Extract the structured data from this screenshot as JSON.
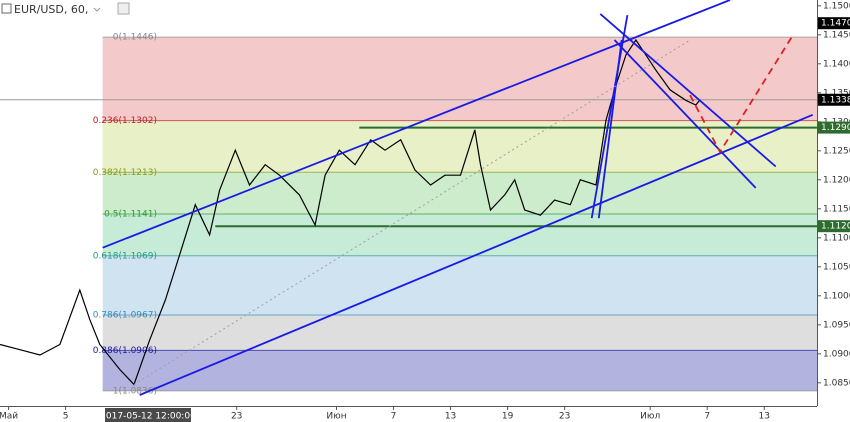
{
  "chart_data": {
    "type": "line",
    "title": "EUR/USD, 60,",
    "color": "#000000",
    "x": [
      -0.6,
      0.8,
      2.2,
      3.6,
      5.0,
      5.7,
      6.4,
      7.8,
      8.8,
      9.9,
      11.0,
      12.0,
      13.1,
      14.1,
      14.8,
      15.9,
      16.9,
      18.0,
      19.0,
      20.4,
      21.5,
      22.2,
      23.2,
      24.3,
      25.4,
      26.4,
      27.5,
      28.5,
      29.6,
      30.6,
      31.7,
      32.7,
      33.1,
      33.8,
      34.8,
      35.5,
      36.2,
      37.3,
      38.3,
      39.4,
      40.1,
      41.2,
      41.9,
      42.6,
      43.3,
      44.0,
      44.7,
      45.4,
      46.4,
      47.5,
      48.2,
      48.5
    ],
    "values": [
      1.0916,
      1.0907,
      1.0898,
      1.0916,
      1.101,
      1.0959,
      1.0916,
      1.0873,
      1.0847,
      1.0924,
      1.0993,
      1.1071,
      1.1157,
      1.1105,
      1.1182,
      1.1251,
      1.1191,
      1.1226,
      1.1208,
      1.1174,
      1.1122,
      1.1208,
      1.1251,
      1.1226,
      1.1269,
      1.1251,
      1.1269,
      1.1217,
      1.1191,
      1.1208,
      1.1208,
      1.1286,
      1.1226,
      1.1148,
      1.1174,
      1.12,
      1.1148,
      1.1139,
      1.1165,
      1.1157,
      1.12,
      1.1191,
      1.1303,
      1.1363,
      1.1415,
      1.1441,
      1.1415,
      1.1389,
      1.1355,
      1.1337,
      1.1329,
      1.1338
    ],
    "xlim": [
      -0.6,
      56.7
    ],
    "ylim": [
      1.081,
      1.151
    ],
    "xticks": [
      {
        "value": 0,
        "label": "Май"
      },
      {
        "value": 4,
        "label": "5"
      },
      {
        "value": 16,
        "label": "23"
      },
      {
        "value": 23,
        "label": "Июн"
      },
      {
        "value": 27,
        "label": "7"
      },
      {
        "value": 31,
        "label": "13"
      },
      {
        "value": 35,
        "label": "19"
      },
      {
        "value": 39,
        "label": "23"
      },
      {
        "value": 45,
        "label": "Июл"
      },
      {
        "value": 49,
        "label": "7"
      },
      {
        "value": 53,
        "label": "13"
      }
    ],
    "yticks": [
      {
        "value": 1.085,
        "label": "1.0850"
      },
      {
        "value": 1.09,
        "label": "1.0900"
      },
      {
        "value": 1.095,
        "label": "1.0950"
      },
      {
        "value": 1.1,
        "label": "1.1000"
      },
      {
        "value": 1.105,
        "label": "1.1050"
      },
      {
        "value": 1.11,
        "label": "1.1100"
      },
      {
        "value": 1.115,
        "label": "1.1150"
      },
      {
        "value": 1.12,
        "label": "1.1200"
      },
      {
        "value": 1.125,
        "label": "1.1250"
      },
      {
        "value": 1.13,
        "label": "1.1300"
      },
      {
        "value": 1.135,
        "label": "1.1350"
      },
      {
        "value": 1.14,
        "label": "1.1400"
      },
      {
        "value": 1.145,
        "label": "1.1450"
      },
      {
        "value": 1.15,
        "label": "1.1500"
      }
    ],
    "crosshair_label": "2017-05-12 12:00:00",
    "fib": {
      "start": 6.6,
      "levels": [
        {
          "value": 1.1446,
          "label": "0(1.1446)",
          "text_color": "#888888",
          "fill": "#f3c9c9"
        },
        {
          "value": 1.1302,
          "label": "0.236(1.1302)",
          "text_color": "#c0202a",
          "fill": "#e7f0c6"
        },
        {
          "value": 1.1213,
          "label": "0.382(1.1213)",
          "text_color": "#8a9a1a",
          "fill": "#cdeccc"
        },
        {
          "value": 1.1141,
          "label": "0.5(1.1141)",
          "text_color": "#2e9a3a",
          "fill": "#c6ecd7"
        },
        {
          "value": 1.1069,
          "label": "0.618(1.1069)",
          "text_color": "#2a9a8a",
          "fill": "#cfe3f1"
        },
        {
          "value": 1.0967,
          "label": "0.786(1.0967)",
          "text_color": "#3a8ab8",
          "fill": "#dedede"
        },
        {
          "value": 1.0906,
          "label": "0.886(1.0906)",
          "text_color": "#1a1aa0",
          "fill": "#b3b3e0"
        },
        {
          "value": 1.0836,
          "label": "1(1.0836)",
          "text_color": "#888888"
        }
      ]
    },
    "price_lines": [
      {
        "value": 1.147,
        "label": "1.1470",
        "color": "#000000"
      },
      {
        "value": 1.1338,
        "label": "1.1338",
        "color": "#000000",
        "line_color": "#9a9a9a",
        "from": -0.6
      },
      {
        "value": 1.129,
        "label": "1.1290",
        "color": "#2e6b2e",
        "line_color": "#2e6b2e",
        "from": 24.6
      },
      {
        "value": 1.112,
        "label": "1.1120",
        "color": "#2e6b2e",
        "line_color": "#2e6b2e",
        "from": 14.5
      }
    ],
    "lines": [
      {
        "x": [
          6.6,
          50.6
        ],
        "y": [
          1.1083,
          1.151
        ],
        "color": "#1a1ae6"
      },
      {
        "x": [
          9.2,
          56.4
        ],
        "y": [
          1.0829,
          1.1312
        ],
        "color": "#1a1ae6"
      },
      {
        "x": [
          40.9,
          43.4
        ],
        "y": [
          1.1134,
          1.1484
        ],
        "color": "#1a1ae6"
      },
      {
        "x": [
          41.4,
          43.0
        ],
        "y": [
          1.1134,
          1.1441
        ],
        "color": "#1a1ae6"
      },
      {
        "x": [
          41.5,
          53.8
        ],
        "y": [
          1.1486,
          1.1223
        ],
        "color": "#1a1ae6"
      },
      {
        "x": [
          42.5,
          52.4
        ],
        "y": [
          1.1441,
          1.1186
        ],
        "color": "#1a1ae6"
      },
      {
        "x": [
          47.8,
          49.9,
          55.0
        ],
        "y": [
          1.1346,
          1.1248,
          1.1449
        ],
        "color": "#e02020",
        "dash": true
      },
      {
        "x": [
          8.8,
          47.8
        ],
        "y": [
          1.0847,
          1.1441
        ],
        "color": "#a0a0a0",
        "dot": true
      }
    ]
  }
}
